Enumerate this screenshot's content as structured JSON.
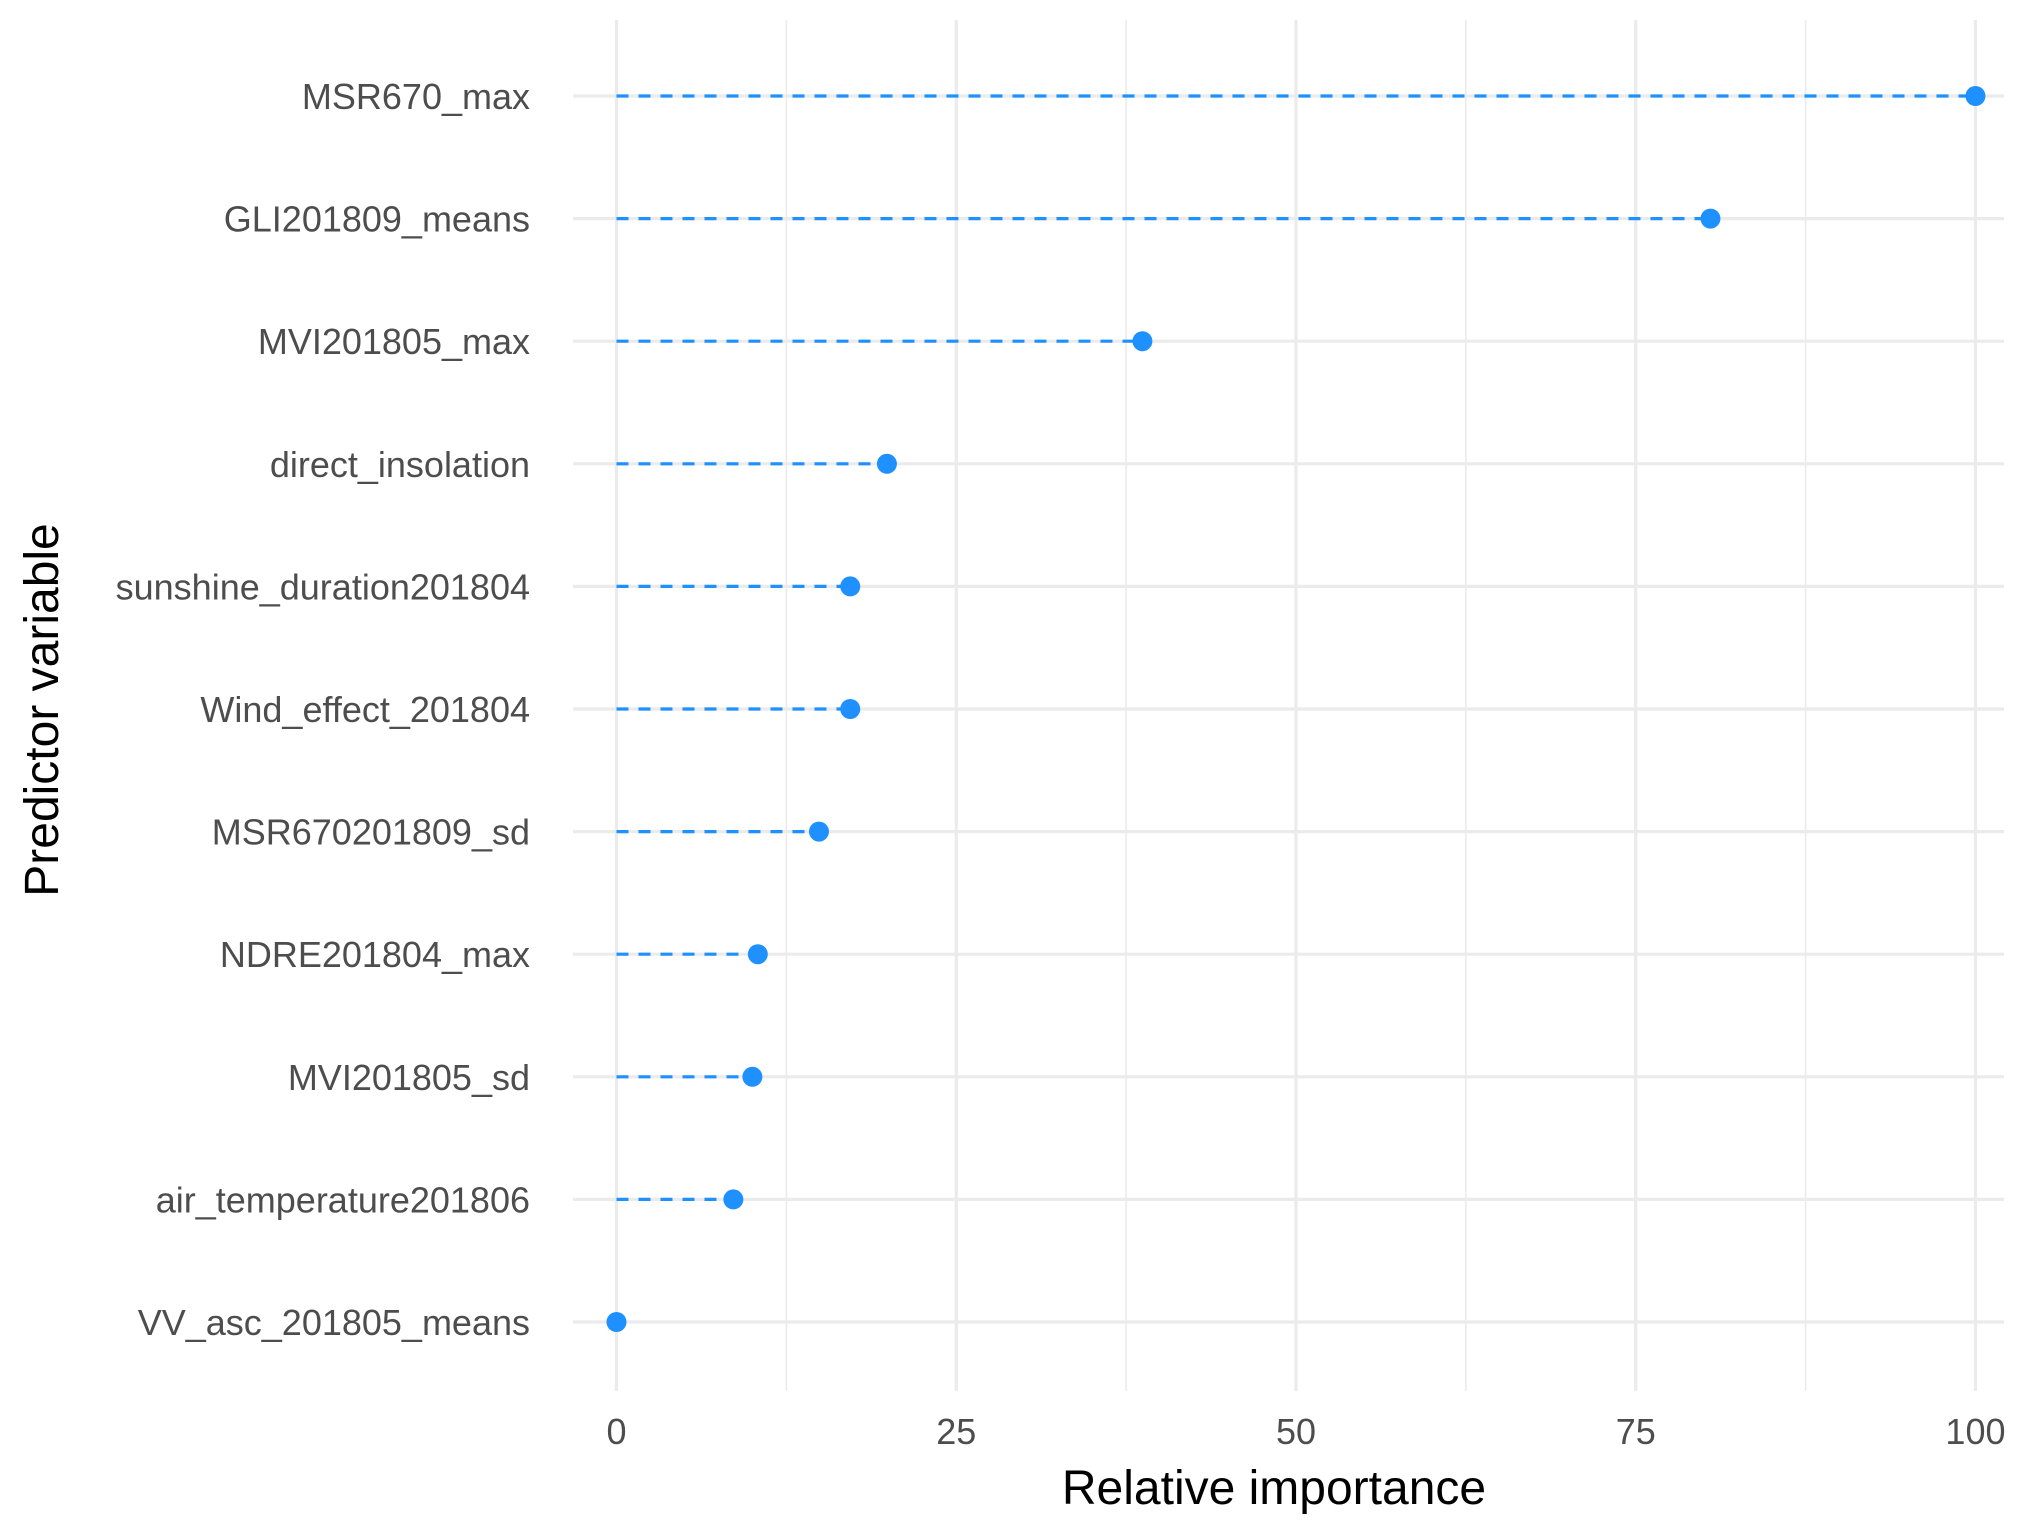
{
  "chart_data": {
    "type": "lollipop",
    "xlabel": "Relative importance",
    "ylabel": "Predictor variable",
    "xlim": [
      -3.2,
      102.1
    ],
    "xticks": [
      0,
      25,
      50,
      75,
      100
    ],
    "grid": true,
    "colors": {
      "point": "#1E90FF",
      "grid": "#EBEBEB",
      "tick_text": "#4D4D4D",
      "title_text": "#000000"
    },
    "categories": [
      "MSR670_max",
      "GLI201809_means",
      "MVI201805_max",
      "direct_insolation",
      "sunshine_duration201804",
      "Wind_effect_201804",
      "MSR670201809_sd",
      "NDRE201804_max",
      "MVI201805_sd",
      "air_temperature201806",
      "VV_asc_201805_means"
    ],
    "values": [
      100,
      80.5,
      38.7,
      19.9,
      17.2,
      17.2,
      14.9,
      10.4,
      10.0,
      8.6,
      0
    ]
  }
}
